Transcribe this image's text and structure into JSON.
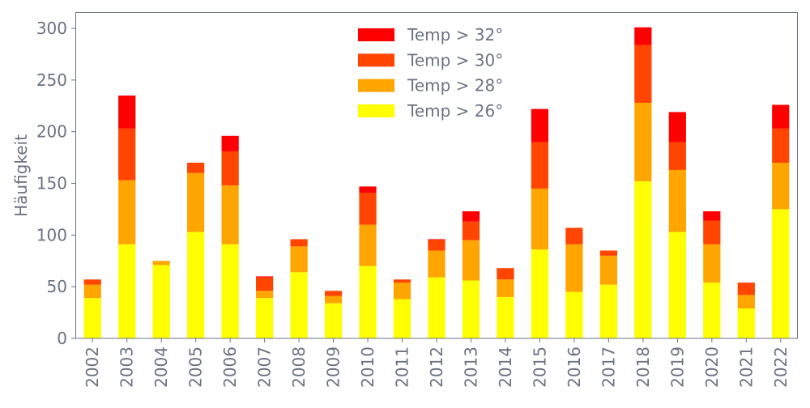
{
  "chart_data": {
    "type": "bar",
    "stacked": true,
    "title": "",
    "xlabel": "",
    "ylabel": "Häufigkeit",
    "ylim": [
      0,
      315.7
    ],
    "yticks": [
      0,
      50,
      100,
      150,
      200,
      250,
      300
    ],
    "grid": false,
    "legend_position": "top-center",
    "categories": [
      "2002",
      "2003",
      "2004",
      "2005",
      "2006",
      "2007",
      "2008",
      "2009",
      "2010",
      "2011",
      "2012",
      "2013",
      "2014",
      "2015",
      "2016",
      "2017",
      "2018",
      "2019",
      "2020",
      "2021",
      "2022"
    ],
    "series": [
      {
        "name": "Temp > 26°",
        "color": "#ffff00",
        "values": [
          39,
          91,
          71,
          103,
          91,
          39,
          64,
          34,
          70,
          38,
          59,
          56,
          40,
          86,
          45,
          52,
          152,
          103,
          54,
          29,
          125
        ]
      },
      {
        "name": "Temp > 28°",
        "color": "#ffa500",
        "values": [
          13,
          62,
          4,
          57,
          57,
          7,
          25,
          7,
          40,
          16,
          26,
          39,
          17,
          59,
          46,
          28,
          76,
          60,
          37,
          13,
          45
        ]
      },
      {
        "name": "Temp > 30°",
        "color": "#ff4500",
        "values": [
          5,
          50,
          0,
          10,
          33,
          13,
          7,
          5,
          31,
          3,
          10,
          18,
          11,
          45,
          16,
          5,
          56,
          27,
          23,
          12,
          33
        ]
      },
      {
        "name": "Temp > 32°",
        "color": "#ff0000",
        "values": [
          0,
          32,
          0,
          0,
          15,
          1,
          0,
          0,
          6,
          0,
          1,
          10,
          0,
          32,
          0,
          0,
          17,
          29,
          9,
          0,
          23
        ]
      }
    ],
    "legend_order": [
      3,
      2,
      1,
      0
    ]
  }
}
